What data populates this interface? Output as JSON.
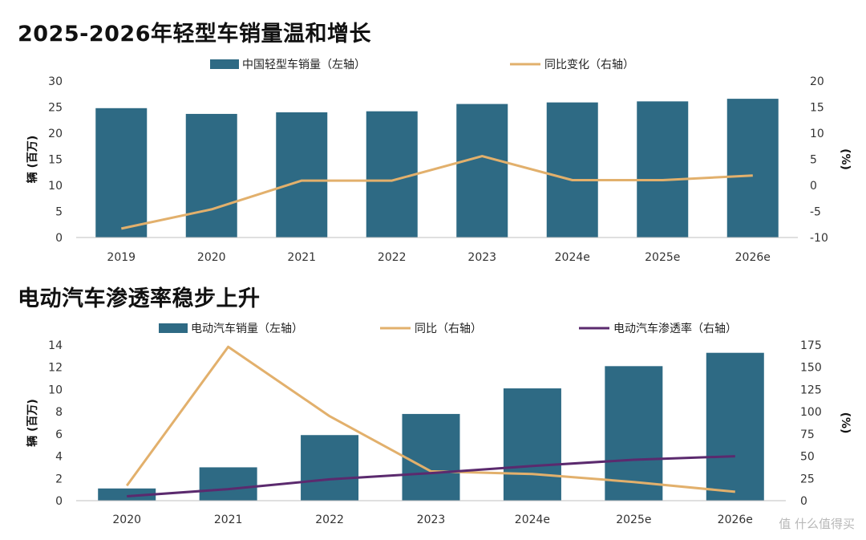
{
  "chart_data": [
    {
      "type": "bar",
      "title": "2025-2026年轻型车销量温和增长",
      "categories": [
        "2019",
        "2020",
        "2021",
        "2022",
        "2023",
        "2024e",
        "2025e",
        "2026e"
      ],
      "series": [
        {
          "name": "中国轻型车销量（左轴）",
          "type": "bar",
          "axis": "left",
          "color": "#2e6a84",
          "values": [
            24.8,
            23.7,
            24.0,
            24.2,
            25.6,
            25.9,
            26.1,
            26.6
          ]
        },
        {
          "name": "同比变化（右轴）",
          "type": "line",
          "axis": "right",
          "color": "#e2b06c",
          "values": [
            -8.3,
            -4.6,
            0.9,
            0.9,
            5.6,
            1.0,
            1.0,
            1.9
          ]
        }
      ],
      "ylabel": "辆 (百万)",
      "y2label": "(%)",
      "ylim": [
        0,
        30
      ],
      "yticks": [
        "0",
        "5",
        "10",
        "15",
        "20",
        "25",
        "30"
      ],
      "y2lim": [
        -10,
        20
      ],
      "y2ticks": [
        "-10",
        "-5",
        "0",
        "5",
        "10",
        "15",
        "20"
      ],
      "legend": "top",
      "grid": false
    },
    {
      "type": "bar",
      "title": "电动汽车渗透率稳步上升",
      "categories": [
        "2020",
        "2021",
        "2022",
        "2023",
        "2024e",
        "2025e",
        "2026e"
      ],
      "series": [
        {
          "name": "电动汽车销量（左轴）",
          "type": "bar",
          "axis": "left",
          "color": "#2e6a84",
          "values": [
            1.1,
            3.0,
            5.9,
            7.8,
            10.1,
            12.1,
            13.3
          ]
        },
        {
          "name": "同比（右轴）",
          "type": "line",
          "axis": "right",
          "color": "#e2b06c",
          "values": [
            17,
            173,
            95,
            33,
            30,
            21,
            10
          ]
        },
        {
          "name": "电动汽车渗透率（右轴）",
          "type": "line",
          "axis": "right",
          "color": "#5b2a6e",
          "values": [
            5,
            13,
            24,
            31,
            39,
            46,
            50
          ]
        }
      ],
      "ylabel": "辆 (百万)",
      "y2label": "(%)",
      "ylim": [
        0,
        14
      ],
      "yticks": [
        "0",
        "2",
        "4",
        "6",
        "8",
        "10",
        "12",
        "14"
      ],
      "y2lim": [
        0,
        175
      ],
      "y2ticks": [
        "0",
        "25",
        "50",
        "75",
        "100",
        "125",
        "150",
        "175"
      ],
      "legend": "top",
      "grid": false
    }
  ],
  "watermark": "值 什么值得买"
}
